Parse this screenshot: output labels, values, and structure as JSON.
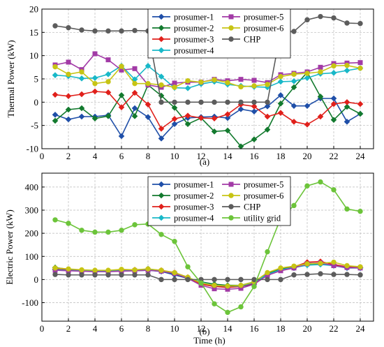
{
  "chart_data": [
    {
      "type": "line",
      "caption": "(a)",
      "xlabel": "",
      "ylabel": "Thermal Power (kW)",
      "xlim": [
        0,
        25
      ],
      "ylim": [
        -10,
        20
      ],
      "xticks": [
        0,
        2,
        4,
        6,
        8,
        10,
        12,
        14,
        16,
        18,
        20,
        22,
        24
      ],
      "yticks": [
        -10,
        -5,
        0,
        5,
        10,
        15,
        20
      ],
      "grid": true,
      "legend_position": "top-center, two columns",
      "x": [
        1,
        2,
        3,
        4,
        5,
        6,
        7,
        8,
        9,
        10,
        11,
        12,
        13,
        14,
        15,
        16,
        17,
        18,
        19,
        20,
        21,
        22,
        23,
        24
      ],
      "series": [
        {
          "name": "prosumer-1",
          "color": "#1f4fa8",
          "marker": "diamond",
          "values": [
            -2.7,
            -3.7,
            -3.1,
            -3.1,
            -2.8,
            -7.3,
            -1.3,
            -3.2,
            -7.8,
            -4.7,
            -3.4,
            -3.2,
            -3.1,
            -3.4,
            -1.5,
            -2.0,
            -0.9,
            1.5,
            -0.8,
            -0.8,
            0.8,
            0.8,
            -4.2,
            -2.5
          ]
        },
        {
          "name": "prosumer-2",
          "color": "#137a2e",
          "marker": "diamond",
          "values": [
            -4.0,
            -1.6,
            -1.3,
            -3.5,
            -3.0,
            1.5,
            -3.0,
            3.7,
            1.4,
            -1.2,
            -4.7,
            -3.4,
            -6.3,
            -6.1,
            -9.5,
            -8.0,
            -5.9,
            -0.3,
            3.2,
            6.4,
            1.2,
            -3.8,
            -1.0,
            -2.5
          ]
        },
        {
          "name": "prosumer-3",
          "color": "#e0201b",
          "marker": "diamond",
          "values": [
            1.6,
            1.3,
            1.7,
            2.3,
            2.1,
            -1.1,
            2.0,
            -0.5,
            -5.7,
            -3.6,
            -2.9,
            -3.4,
            -3.5,
            -2.6,
            -0.5,
            -0.9,
            -3.1,
            -2.3,
            -4.2,
            -4.8,
            -3.1,
            -0.4,
            0.0,
            -0.4
          ]
        },
        {
          "name": "prosumer-4",
          "color": "#19b8c8",
          "marker": "diamond",
          "values": [
            5.8,
            5.6,
            5.1,
            5.2,
            6.0,
            7.8,
            4.9,
            7.8,
            5.5,
            3.1,
            3.0,
            3.9,
            4.4,
            3.8,
            3.5,
            3.3,
            3.2,
            4.4,
            4.5,
            5.2,
            6.1,
            6.3,
            6.8,
            7.3
          ]
        },
        {
          "name": "prosumer-5",
          "color": "#a23aa6",
          "marker": "square",
          "values": [
            8.0,
            8.6,
            7.0,
            10.4,
            9.1,
            6.9,
            7.2,
            3.7,
            3.2,
            4.1,
            4.3,
            4.3,
            4.9,
            4.6,
            4.9,
            4.7,
            4.2,
            5.9,
            6.2,
            6.5,
            7.5,
            8.3,
            8.4,
            8.5
          ]
        },
        {
          "name": "prosumer-6",
          "color": "#c7c414",
          "marker": "circle",
          "values": [
            7.6,
            6.0,
            6.5,
            4.0,
            4.4,
            7.7,
            4.0,
            4.0,
            3.7,
            3.2,
            4.6,
            4.3,
            4.8,
            4.2,
            3.3,
            3.5,
            3.8,
            5.5,
            6.0,
            6.2,
            6.5,
            7.8,
            7.9,
            7.3
          ]
        },
        {
          "name": "CHP",
          "color": "#5c5c5c",
          "marker": "circle",
          "values": [
            16.4,
            16.0,
            15.5,
            15.3,
            15.3,
            15.3,
            15.4,
            15.3,
            0,
            0,
            0,
            0,
            0,
            0,
            0,
            0,
            0,
            15.2,
            15.2,
            17.7,
            18.4,
            18.1,
            17.0,
            16.9
          ]
        }
      ]
    },
    {
      "type": "line",
      "caption": "(b)",
      "xlabel": "Time (h)",
      "ylabel": "Electric Power (kW)",
      "xlim": [
        0,
        25
      ],
      "ylim": [
        -180,
        460
      ],
      "xticks": [
        0,
        2,
        4,
        6,
        8,
        10,
        12,
        14,
        16,
        18,
        20,
        22,
        24
      ],
      "yticks": [
        -100,
        0,
        100,
        200,
        300,
        400
      ],
      "grid": true,
      "legend_position": "top-center, two columns",
      "x": [
        1,
        2,
        3,
        4,
        5,
        6,
        7,
        8,
        9,
        10,
        11,
        12,
        13,
        14,
        15,
        16,
        17,
        18,
        19,
        20,
        21,
        22,
        23,
        24
      ],
      "series": [
        {
          "name": "prosumer-1",
          "color": "#1f4fa8",
          "marker": "diamond",
          "values": [
            45,
            40,
            38,
            36,
            36,
            38,
            38,
            40,
            35,
            20,
            5,
            -15,
            -28,
            -32,
            -30,
            -20,
            20,
            40,
            50,
            70,
            70,
            60,
            50,
            50
          ]
        },
        {
          "name": "prosumer-2",
          "color": "#137a2e",
          "marker": "diamond",
          "values": [
            52,
            44,
            40,
            38,
            38,
            42,
            40,
            46,
            38,
            25,
            5,
            -10,
            -20,
            -25,
            -25,
            -10,
            25,
            45,
            55,
            65,
            68,
            62,
            55,
            52
          ]
        },
        {
          "name": "prosumer-3",
          "color": "#e0201b",
          "marker": "diamond",
          "values": [
            44,
            42,
            40,
            37,
            36,
            40,
            42,
            44,
            40,
            30,
            10,
            -20,
            -30,
            -34,
            -30,
            -15,
            20,
            40,
            55,
            75,
            78,
            65,
            55,
            52
          ]
        },
        {
          "name": "prosumer-4",
          "color": "#19b8c8",
          "marker": "diamond",
          "values": [
            42,
            40,
            38,
            36,
            36,
            38,
            40,
            42,
            38,
            28,
            8,
            -12,
            -25,
            -28,
            -28,
            -12,
            22,
            42,
            52,
            62,
            65,
            60,
            52,
            50
          ]
        },
        {
          "name": "prosumer-5",
          "color": "#a23aa6",
          "marker": "square",
          "values": [
            40,
            38,
            36,
            34,
            34,
            36,
            38,
            40,
            36,
            26,
            5,
            -25,
            -40,
            -42,
            -38,
            -20,
            18,
            38,
            50,
            68,
            72,
            60,
            52,
            50
          ]
        },
        {
          "name": "prosumer-6",
          "color": "#c7c414",
          "marker": "circle",
          "values": [
            50,
            46,
            42,
            40,
            40,
            44,
            42,
            46,
            40,
            30,
            10,
            -15,
            -25,
            -28,
            -25,
            -10,
            30,
            50,
            58,
            68,
            70,
            75,
            60,
            55
          ]
        },
        {
          "name": "CHP",
          "color": "#5c5c5c",
          "marker": "circle",
          "values": [
            22,
            20,
            20,
            20,
            20,
            20,
            20,
            20,
            0,
            0,
            0,
            0,
            0,
            0,
            0,
            0,
            0,
            0,
            20,
            22,
            25,
            22,
            22,
            20
          ]
        },
        {
          "name": "utility grid",
          "color": "#6cc43a",
          "marker": "circle",
          "values": [
            258,
            243,
            213,
            205,
            205,
            213,
            237,
            240,
            195,
            165,
            55,
            -15,
            -105,
            -142,
            -118,
            -30,
            120,
            265,
            320,
            405,
            422,
            388,
            305,
            295
          ]
        }
      ]
    }
  ]
}
